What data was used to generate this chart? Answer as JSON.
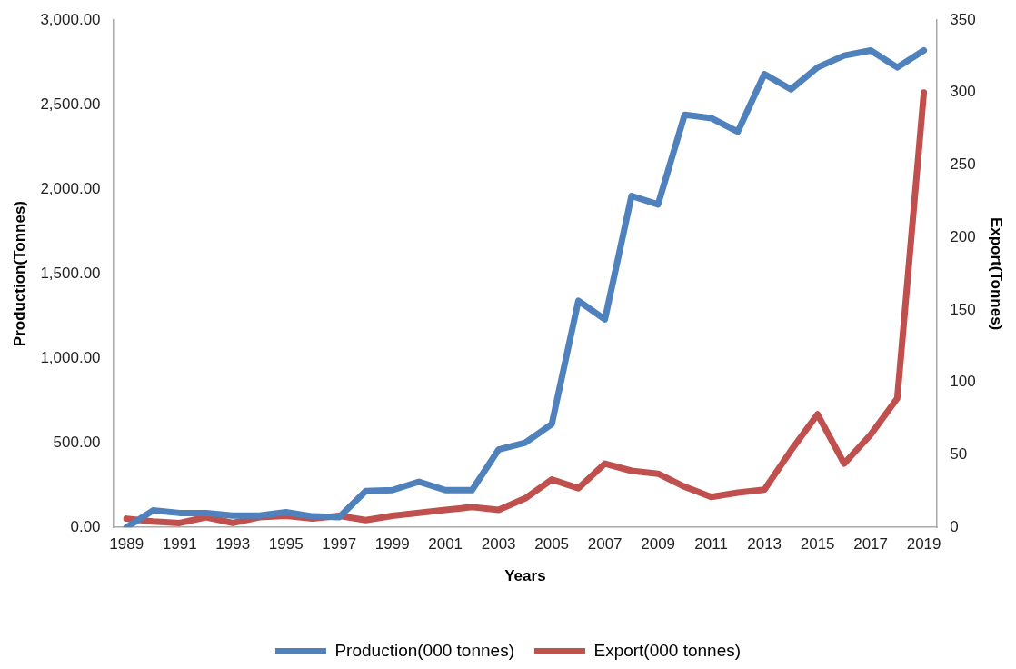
{
  "chart_data": {
    "type": "line",
    "xlabel": "Years",
    "ylabel": "Production(Tonnes)",
    "y2label": "Export(Tonnes)",
    "categories": [
      "1989",
      null,
      "1991",
      null,
      "1993",
      null,
      "1995",
      null,
      "1997",
      null,
      "1999",
      null,
      "2001",
      null,
      "2003",
      null,
      "2005",
      null,
      "2007",
      null,
      "2009",
      null,
      "2011",
      null,
      "2013",
      null,
      "2015",
      null,
      "2017",
      null,
      "2019"
    ],
    "series": [
      {
        "name": "Production(000 tonnes)",
        "color": "#4f81bd",
        "values": [
          0,
          100,
          85,
          85,
          70,
          70,
          90,
          65,
          60,
          215,
          220,
          270,
          220,
          220,
          460,
          500,
          610,
          1340,
          1230,
          1960,
          1910,
          2440,
          2420,
          2340,
          2680,
          2590,
          2720,
          2790,
          2820,
          2720,
          2820
        ]
      },
      {
        "name": "Export(000 tonnes)",
        "color": "#c0504d",
        "axis": "y2",
        "values": [
          6,
          4,
          3,
          7,
          3,
          7,
          8,
          6,
          8,
          5,
          8,
          10,
          12,
          14,
          12,
          20,
          33,
          27,
          44,
          39,
          37,
          28,
          21,
          24,
          26,
          53,
          78,
          44,
          64,
          89,
          300
        ]
      }
    ],
    "ylim": [
      0,
      3000
    ],
    "yticks": [
      {
        "value": 0,
        "label": "0.00"
      },
      {
        "value": 500,
        "label": "500.00"
      },
      {
        "value": 1000,
        "label": "1,000.00"
      },
      {
        "value": 1500,
        "label": "1,500.00"
      },
      {
        "value": 2000,
        "label": "2,000.00"
      },
      {
        "value": 2500,
        "label": "2,500.00"
      },
      {
        "value": 3000,
        "label": "3,000.00"
      }
    ],
    "y2lim": [
      0,
      350
    ],
    "y2ticks": [
      0,
      50,
      100,
      150,
      200,
      250,
      300,
      350
    ],
    "grid": false,
    "legend": "bottom",
    "marker": "none",
    "line_style": "solid"
  }
}
